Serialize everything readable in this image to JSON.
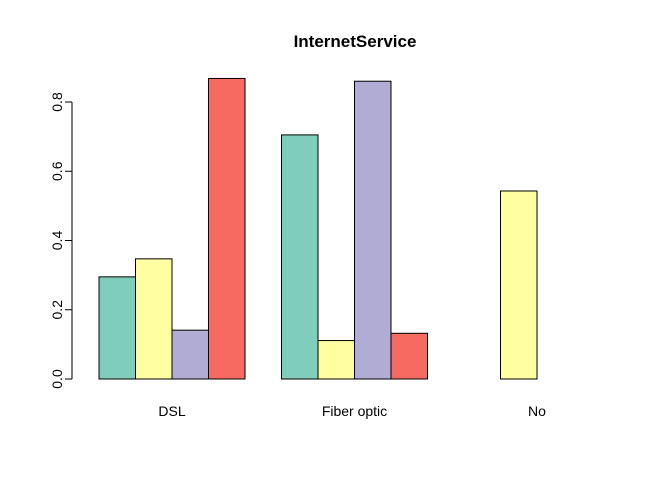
{
  "chart_data": {
    "type": "bar",
    "title": "InternetService",
    "xlabel": "",
    "ylabel": "",
    "categories": [
      "DSL",
      "Fiber optic",
      "No"
    ],
    "ylim": [
      0,
      0.8
    ],
    "yticks": [
      0.0,
      0.2,
      0.4,
      0.6,
      0.8
    ],
    "ytick_labels": [
      "0.0",
      "0.2",
      "0.4",
      "0.6",
      "0.8"
    ],
    "grid": false,
    "legend": "none",
    "series": [
      {
        "color": "#7fcdbb",
        "values": [
          0.295,
          0.705,
          0.0
        ]
      },
      {
        "color": "#ffffa1",
        "values": [
          0.347,
          0.111,
          0.543
        ]
      },
      {
        "color": "#b1acd4",
        "values": [
          0.141,
          0.86,
          0.0
        ]
      },
      {
        "color": "#f76a61",
        "values": [
          0.868,
          0.132,
          0.0
        ]
      }
    ]
  }
}
